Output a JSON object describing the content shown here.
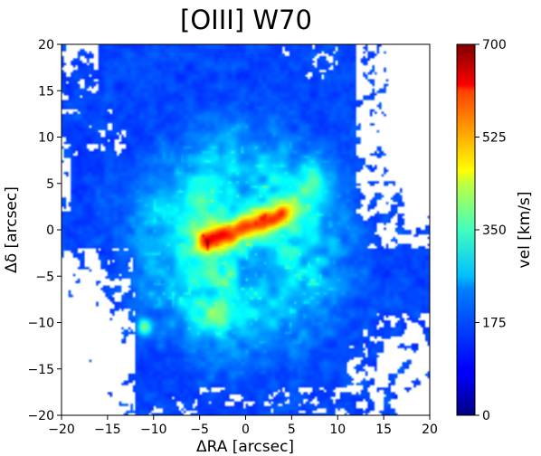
{
  "chart_data": {
    "type": "heatmap",
    "title": "[OIII] W70",
    "xlabel": "ΔRA [arcsec]",
    "ylabel": "Δδ [arcsec]",
    "xlim": [
      -20,
      20
    ],
    "ylim": [
      -20,
      20
    ],
    "xticks": [
      -20,
      -15,
      -10,
      -5,
      0,
      5,
      10,
      15,
      20
    ],
    "yticks": [
      -20,
      -15,
      -10,
      -5,
      0,
      5,
      10,
      15,
      20
    ],
    "xtick_labels": [
      "−20",
      "−15",
      "−10",
      "−5",
      "0",
      "5",
      "10",
      "15",
      "20"
    ],
    "ytick_labels": [
      "−20",
      "−15",
      "−10",
      "−5",
      "0",
      "5",
      "10",
      "15",
      "20"
    ],
    "colorbar": {
      "label": "vel [km/s]",
      "range": [
        0,
        700
      ],
      "ticks": [
        0,
        175,
        350,
        525,
        700
      ],
      "tick_labels": [
        "0",
        "175",
        "350",
        "525",
        "700"
      ],
      "colormap": "jet"
    },
    "features": [
      {
        "description": "elongated high-velocity ridge",
        "x_range": [
          -4,
          4
        ],
        "y_range": [
          -1.5,
          1.5
        ],
        "value_peak": 690
      },
      {
        "description": "extended intermediate-velocity envelope",
        "x_range": [
          -9,
          8
        ],
        "y_range": [
          -11,
          9
        ],
        "value_typical": 260
      },
      {
        "description": "outer low-velocity field",
        "value_typical": 140
      }
    ]
  }
}
